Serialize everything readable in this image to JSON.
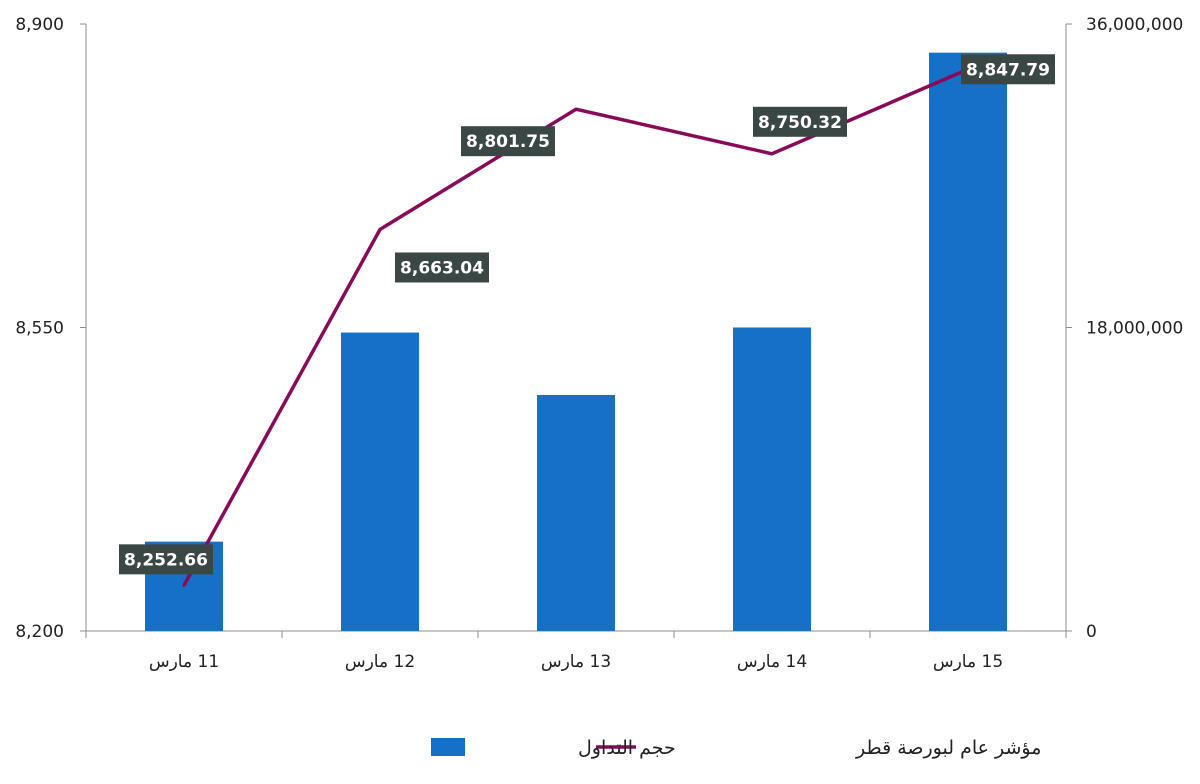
{
  "chart_data": {
    "type": "bar",
    "categories": [
      "11 مارس",
      "12 مارس",
      "13 مارس",
      "14 مارس",
      "15 مارس"
    ],
    "series": [
      {
        "name": "حجم التداول",
        "type": "bar",
        "axis": "right",
        "color": "#1570c6",
        "values": [
          5300000,
          17700000,
          14000000,
          18000000,
          34300000
        ]
      },
      {
        "name": "مؤشر عام لبورصة قطر",
        "type": "line",
        "axis": "left",
        "color": "#8a0a5a",
        "values": [
          8252.66,
          8663.04,
          8801.75,
          8750.32,
          8847.79
        ],
        "data_labels": [
          "8,252.66",
          "8,663.04",
          "8,801.75",
          "8,750.32",
          "8,847.79"
        ]
      }
    ],
    "y_left": {
      "ylim": [
        8200,
        8900
      ],
      "ticks": [
        "8,200",
        "8,550",
        "8,900"
      ]
    },
    "y_right": {
      "ylim": [
        0,
        36000000
      ],
      "ticks": [
        "0",
        "18,000,000",
        "36,000,000"
      ]
    },
    "grid": false,
    "legend": {
      "placement": "bottom",
      "entries": [
        "مؤشر عام لبورصة قطر",
        "حجم التداول"
      ]
    },
    "label_box_color": "#3a4745"
  }
}
